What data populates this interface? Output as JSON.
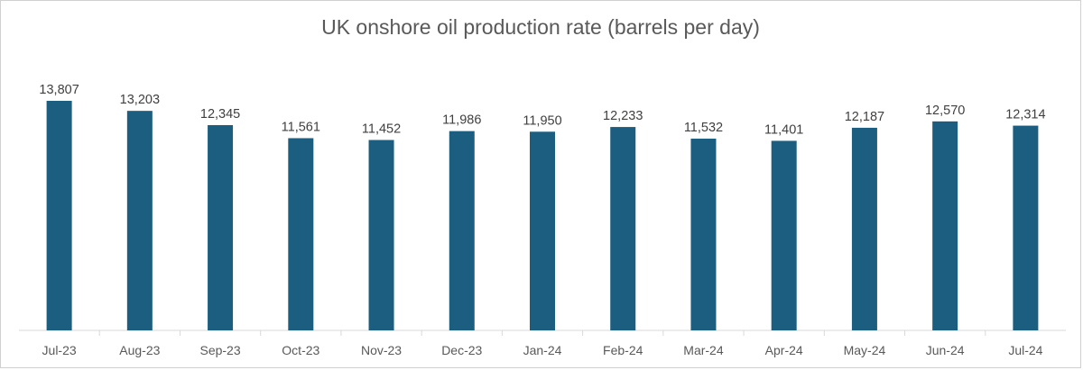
{
  "chart_data": {
    "type": "bar",
    "title": "UK onshore oil production rate (barrels per day)",
    "xlabel": "",
    "ylabel": "",
    "categories": [
      "Jul-23",
      "Aug-23",
      "Sep-23",
      "Oct-23",
      "Nov-23",
      "Dec-23",
      "Jan-24",
      "Feb-24",
      "Mar-24",
      "Apr-24",
      "May-24",
      "Jun-24",
      "Jul-24"
    ],
    "series": [
      {
        "values": [
          13807,
          13203,
          12345,
          11561,
          11452,
          11986,
          11950,
          12233,
          11532,
          11401,
          12187,
          12570,
          12314
        ],
        "labels": [
          "13,807",
          "13,203",
          "12,345",
          "11,561",
          "11,452",
          "11,986",
          "11,950",
          "12,233",
          "11,532",
          "11,401",
          "12,187",
          "12,570",
          "12,314"
        ]
      }
    ],
    "ylim": [
      0,
      16000
    ],
    "grid": false,
    "legend": "none",
    "bar_color": "#1b5e80",
    "axis_color": "#d9d9d9"
  }
}
